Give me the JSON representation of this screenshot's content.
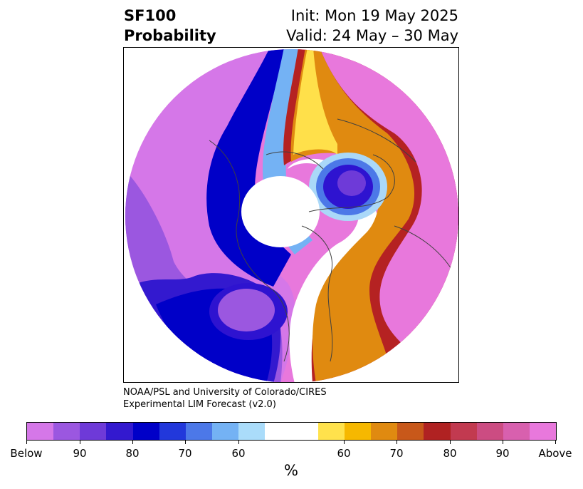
{
  "title": {
    "left_line1": "SF100",
    "left_line2": "Probability",
    "right_line1": "Init: Mon 19 May 2025",
    "right_line2": "Valid: 24 May – 30 May"
  },
  "credit": {
    "line1": "NOAA/PSL and University of Colorado/CIRES",
    "line2": "Experimental LIM Forecast (v2.0)"
  },
  "map": {
    "projection": "north-polar-stereographic",
    "field": "SF100 probability",
    "colors": {
      "below_extreme": "#d577e8",
      "below_strong": "#2e13d0",
      "below_core": "#0000c8",
      "below_light": "#aad8f8",
      "neutral": "#ffffff",
      "above_light": "#ffe04a",
      "above_mid": "#e08a10",
      "above_strong": "#b52222",
      "above_extreme": "#e878dc",
      "coastline": "#404040"
    }
  },
  "colorbar": {
    "colors": [
      "#d577e8",
      "#9b57e0",
      "#6e3ad8",
      "#3319cf",
      "#0000c8",
      "#2238db",
      "#4c78e8",
      "#74b2f4",
      "#aadcfa",
      "#ffffff",
      "#ffffff",
      "#ffe24c",
      "#f6b800",
      "#e08a10",
      "#c8581a",
      "#b02222",
      "#c23a50",
      "#cc4c82",
      "#d860ae",
      "#e878dc"
    ],
    "ticks": [
      "Below",
      "90",
      "80",
      "70",
      "60",
      "60",
      "70",
      "80",
      "90",
      "Above"
    ],
    "unit": "%"
  }
}
